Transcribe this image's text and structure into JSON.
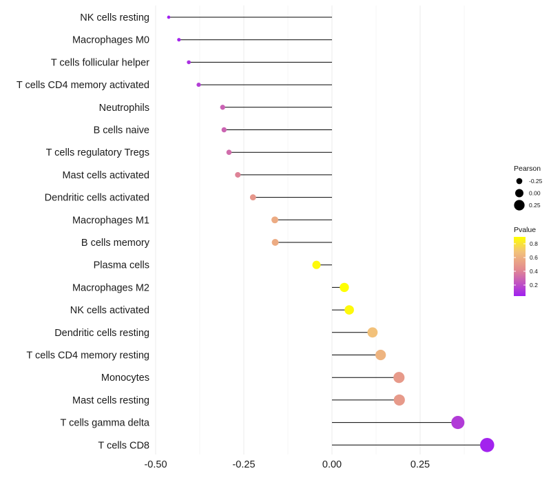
{
  "chart_data": {
    "type": "lollipop",
    "title": "",
    "xlabel": "",
    "ylabel": "",
    "xlim": [
      -0.5,
      0.44
    ],
    "x_ticks": [
      -0.5,
      -0.25,
      0.0,
      0.25
    ],
    "x_tick_labels": [
      "-0.50",
      "-0.25",
      "0.00",
      "0.25"
    ],
    "categories": [
      "NK cells resting",
      "Macrophages M0",
      "T cells follicular helper",
      "T cells CD4 memory activated",
      "Neutrophils",
      "B cells naive",
      "T cells regulatory  Tregs ",
      "Mast cells activated",
      "Dendritic cells activated",
      "Macrophages M1",
      "B cells memory",
      "Plasma cells",
      "Macrophages M2",
      "NK cells activated",
      "Dendritic cells resting",
      "T cells CD4 memory resting",
      "Monocytes",
      "Mast cells resting",
      "T cells gamma delta",
      "T cells CD8"
    ],
    "pearson": [
      -0.463,
      -0.434,
      -0.406,
      -0.378,
      -0.31,
      -0.306,
      -0.292,
      -0.267,
      -0.224,
      -0.162,
      -0.161,
      -0.044,
      0.035,
      0.049,
      0.115,
      0.138,
      0.19,
      0.191,
      0.357,
      0.44
    ],
    "pvalue": [
      0.04,
      0.06,
      0.1,
      0.15,
      0.28,
      0.29,
      0.32,
      0.4,
      0.48,
      0.58,
      0.58,
      0.88,
      0.9,
      0.88,
      0.68,
      0.62,
      0.5,
      0.5,
      0.14,
      0.05
    ],
    "legend": {
      "size_title": "Pearson",
      "size_entries": [
        {
          "label": "-0.25",
          "value": -0.25
        },
        {
          "label": "0.00",
          "value": 0.0
        },
        {
          "label": "0.25",
          "value": 0.25
        }
      ],
      "color_title": "Pvalue",
      "color_ticks": [
        {
          "label": "0.8",
          "value": 0.8
        },
        {
          "label": "0.6",
          "value": 0.6
        },
        {
          "label": "0.4",
          "value": 0.4
        },
        {
          "label": "0.2",
          "value": 0.2
        }
      ],
      "color_range": [
        0.04,
        0.9
      ],
      "color_low": "#a020f0",
      "color_high": "#ffff00",
      "position": "right"
    },
    "grid": true
  }
}
